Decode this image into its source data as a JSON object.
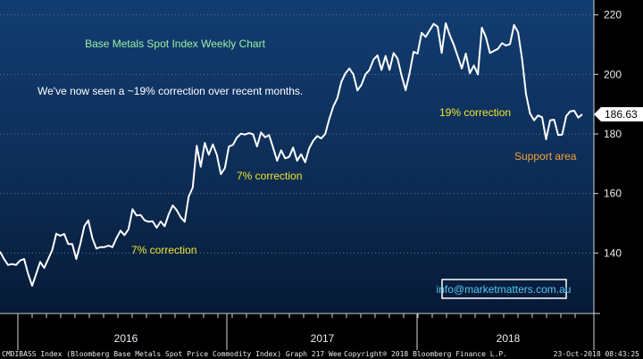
{
  "chart_data": {
    "type": "line",
    "title": "Base Metals Spot Index Weekly Chart",
    "subtitle": "We've now seen a ~19% correction over recent months.",
    "ylim": [
      120,
      225
    ],
    "y_ticks": [
      140,
      160,
      180,
      200,
      220
    ],
    "x_labels": [
      "2016",
      "2017",
      "2018"
    ],
    "last_value_label": "186.63",
    "annotations": {
      "corr_a": "7% correction",
      "corr_b": "7% correction",
      "corr_c": "19% correction",
      "support": "Support area"
    },
    "contact": "info@marketmatters.com.au",
    "series": [
      {
        "values": [
          140.5,
          138,
          136,
          136.3,
          136,
          137.5,
          138,
          133,
          129,
          133,
          137,
          135,
          138,
          141,
          146.5,
          145.8,
          146.4,
          143,
          143,
          138,
          143,
          149,
          151,
          145,
          141.5,
          142,
          142,
          142.5,
          142,
          145,
          147.5,
          146,
          148,
          154.7,
          152.6,
          152.8,
          151,
          150.5,
          150.7,
          148.5,
          150.6,
          149,
          153,
          156,
          154.4,
          152,
          150.5,
          159,
          162,
          176,
          169,
          177,
          173,
          176.5,
          173,
          166.5,
          168.5,
          175.8,
          176.3,
          178.8,
          180.1,
          179.8,
          180.3,
          179.9,
          175.8,
          180.5,
          178.9,
          179.6,
          175.4,
          171,
          174.5,
          171.8,
          172.3,
          175.4,
          171,
          173.2,
          170.5,
          175.2,
          177.7,
          179.3,
          178.5,
          180,
          185,
          189.2,
          192,
          197.5,
          200.3,
          202,
          200,
          194.6,
          196.5,
          200,
          201.5,
          205,
          206.4,
          201.5,
          206.2,
          201.5,
          207.2,
          205.3,
          199.6,
          194.7,
          200.4,
          207.6,
          207,
          214,
          212.6,
          214.8,
          217,
          216,
          207.2,
          217.2,
          213.2,
          210,
          206,
          202,
          207,
          200.4,
          203,
          200,
          215.7,
          212.5,
          207.2,
          207.9,
          208.6,
          210.5,
          209.7,
          210.2,
          216.6,
          214.2,
          205.2,
          193.4,
          186.9,
          184.6,
          186.2,
          185.6,
          178.2,
          184.6,
          184.8,
          179.6,
          179.8,
          186,
          187.6,
          187.8,
          185.5,
          186.6
        ],
        "color": "#ffffff"
      }
    ]
  },
  "footer": {
    "left": "CMDIBASS Index (Bloomberg Base Metals Spot Price Commodity Index) Graph 217 Wee",
    "mid": "Copyright® 2018 Bloomberg Finance L.P.",
    "right": "23-Oct-2018 08:43:25"
  }
}
